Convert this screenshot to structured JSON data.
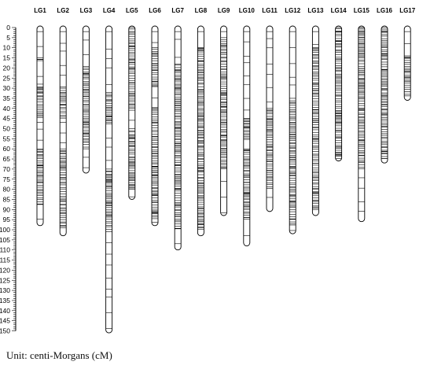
{
  "scale": {
    "unit": "cM",
    "min": 0,
    "max": 150,
    "tick_labels": [
      0,
      5,
      10,
      15,
      20,
      25,
      30,
      35,
      40,
      45,
      50,
      55,
      60,
      65,
      70,
      75,
      80,
      85,
      90,
      95,
      100,
      105,
      110,
      115,
      120,
      125,
      130,
      135,
      140,
      145,
      150
    ]
  },
  "linkage_groups": [
    {
      "name": "LG1",
      "length_cM": 98,
      "dense_regions": [
        [
          15,
          17
        ],
        [
          28,
          45
        ],
        [
          60,
          88
        ]
      ]
    },
    {
      "name": "LG2",
      "length_cM": 103,
      "dense_regions": [
        [
          30,
          45
        ],
        [
          60,
          100
        ]
      ]
    },
    {
      "name": "LG3",
      "length_cM": 72,
      "dense_regions": [
        [
          20,
          60
        ]
      ]
    },
    {
      "name": "LG4",
      "length_cM": 151,
      "dense_regions": [
        [
          33,
          48
        ],
        [
          70,
          100
        ]
      ]
    },
    {
      "name": "LG5",
      "length_cM": 85,
      "dense_regions": [
        [
          0,
          40
        ],
        [
          50,
          80
        ]
      ]
    },
    {
      "name": "LG6",
      "length_cM": 98,
      "dense_regions": [
        [
          10,
          30
        ],
        [
          40,
          95
        ]
      ]
    },
    {
      "name": "LG7",
      "length_cM": 110,
      "dense_regions": [
        [
          18,
          100
        ]
      ]
    },
    {
      "name": "LG8",
      "length_cM": 103,
      "dense_regions": [
        [
          10,
          100
        ]
      ]
    },
    {
      "name": "LG9",
      "length_cM": 93,
      "dense_regions": [
        [
          5,
          70
        ]
      ]
    },
    {
      "name": "LG10",
      "length_cM": 108,
      "dense_regions": [
        [
          45,
          55
        ],
        [
          60,
          95
        ]
      ]
    },
    {
      "name": "LG11",
      "length_cM": 91,
      "dense_regions": [
        [
          40,
          80
        ]
      ]
    },
    {
      "name": "LG12",
      "length_cM": 102,
      "dense_regions": [
        [
          35,
          98
        ]
      ]
    },
    {
      "name": "LG13",
      "length_cM": 93,
      "dense_regions": [
        [
          10,
          90
        ]
      ]
    },
    {
      "name": "LG14",
      "length_cM": 66,
      "dense_regions": [
        [
          0,
          65
        ]
      ]
    },
    {
      "name": "LG15",
      "length_cM": 96,
      "dense_regions": [
        [
          0,
          70
        ]
      ]
    },
    {
      "name": "LG16",
      "length_cM": 67,
      "dense_regions": [
        [
          0,
          65
        ]
      ]
    },
    {
      "name": "LG17",
      "length_cM": 36,
      "dense_regions": [
        [
          14,
          34
        ]
      ]
    }
  ],
  "footer": {
    "unit_note": "Unit: centi-Morgans (cM)"
  }
}
